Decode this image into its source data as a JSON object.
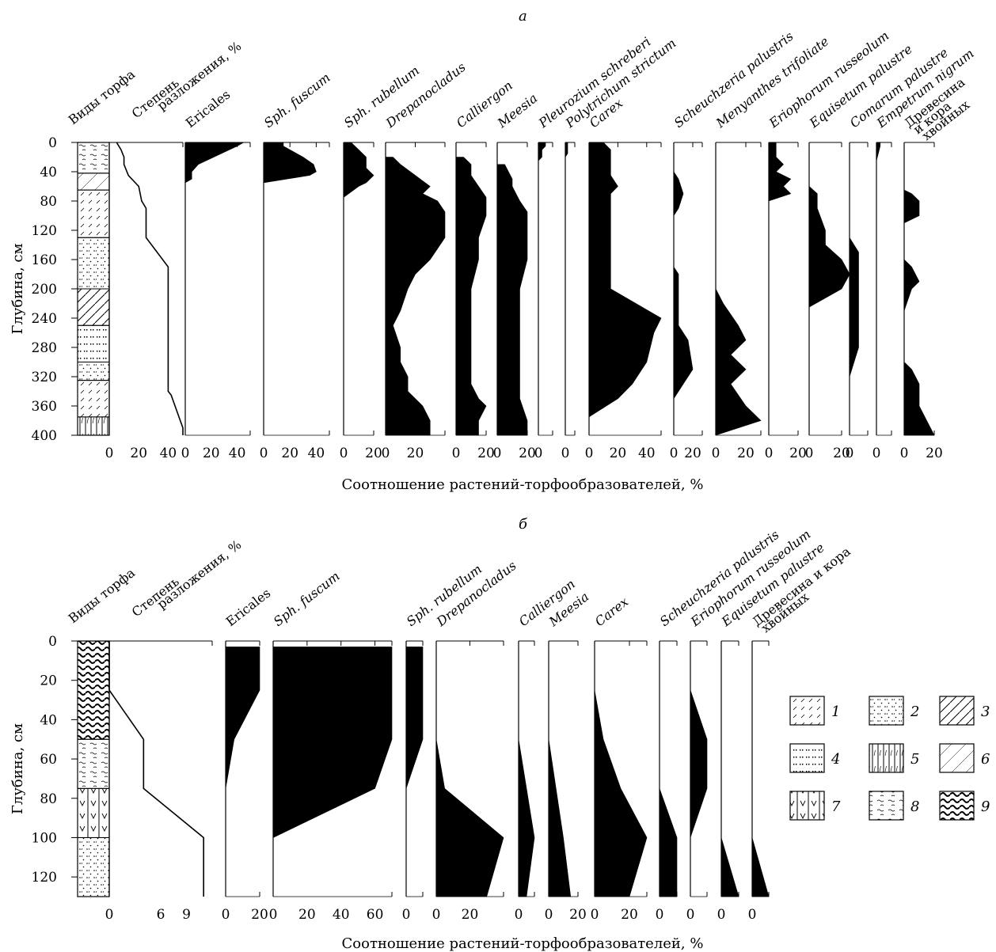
{
  "chart_data": [
    {
      "type": "area",
      "panel_label": "а",
      "xlabel": "Соотношение растений-торфообразователей, %",
      "ylabel": "Глубина, см",
      "ylim": [
        0,
        400
      ],
      "y_ticks": [
        "0",
        "40",
        "80",
        "120",
        "160",
        "200",
        "240",
        "280",
        "320",
        "360",
        "400"
      ],
      "peat_types_header": "Виды торфа",
      "peat_layers": [
        {
          "top": 0,
          "bottom": 42,
          "legend_type": 8,
          "hatch": "hook"
        },
        {
          "top": 42,
          "bottom": 65,
          "legend_type": 6,
          "hatch": "thin"
        },
        {
          "top": 65,
          "bottom": 130,
          "legend_type": 1,
          "hatch": "dashes"
        },
        {
          "top": 130,
          "bottom": 200,
          "legend_type": 2,
          "hatch": "dots"
        },
        {
          "top": 200,
          "bottom": 250,
          "legend_type": 3,
          "hatch": "diag"
        },
        {
          "top": 250,
          "bottom": 300,
          "legend_type": 4,
          "hatch": "sqdots"
        },
        {
          "top": 300,
          "bottom": 325,
          "legend_type": 2,
          "hatch": "dots"
        },
        {
          "top": 325,
          "bottom": 375,
          "legend_type": 1,
          "hatch": "dashes"
        },
        {
          "top": 375,
          "bottom": 400,
          "legend_type": 5,
          "hatch": "vert"
        }
      ],
      "decomposition": {
        "label": "Степень разложения, %",
        "label_line1": "Степень",
        "label_line2": "разложения, %",
        "xlim": [
          0,
          50
        ],
        "ticks": [
          "0",
          "20",
          "40"
        ],
        "depths": [
          0,
          10,
          20,
          30,
          45,
          60,
          80,
          90,
          130,
          170,
          200,
          230,
          340,
          345,
          390,
          400
        ],
        "values": [
          5,
          8,
          10,
          10,
          13,
          20,
          22,
          25,
          25,
          40,
          40,
          40,
          40,
          42,
          50,
          50
        ]
      },
      "series": [
        {
          "name": "Ericales",
          "italic": false,
          "xlim": [
            0,
            50
          ],
          "ticks": [
            "0",
            "20",
            "40"
          ],
          "depths": [
            0,
            5,
            30,
            40,
            50,
            55
          ],
          "values": [
            45,
            40,
            10,
            5,
            5,
            0
          ]
        },
        {
          "name": "Sph. fuscum",
          "italic": true,
          "xlim": [
            0,
            50
          ],
          "ticks": [
            "0",
            "20",
            "40"
          ],
          "depths": [
            0,
            5,
            20,
            30,
            40,
            45,
            55
          ],
          "values": [
            15,
            15,
            30,
            38,
            40,
            35,
            0
          ]
        },
        {
          "name": "Sph. rubellum",
          "italic": true,
          "xlim": [
            0,
            20
          ],
          "ticks": [
            "0",
            "20"
          ],
          "depths": [
            0,
            10,
            20,
            35,
            45,
            55,
            60,
            75
          ],
          "values": [
            5,
            10,
            15,
            15,
            20,
            15,
            10,
            0
          ]
        },
        {
          "name": "Drepanocladus",
          "italic": true,
          "xlim": [
            0,
            40
          ],
          "ticks": [
            "0",
            "20"
          ],
          "depths": [
            20,
            30,
            45,
            60,
            70,
            80,
            95,
            130,
            160,
            180,
            200,
            230,
            250,
            280,
            300,
            320,
            340,
            360,
            380,
            400
          ],
          "values": [
            5,
            10,
            20,
            30,
            25,
            35,
            40,
            40,
            30,
            20,
            15,
            10,
            5,
            10,
            10,
            15,
            15,
            25,
            30,
            30
          ]
        },
        {
          "name": "Calliergon",
          "italic": true,
          "xlim": [
            0,
            20
          ],
          "ticks": [
            "0",
            "20"
          ],
          "depths": [
            20,
            30,
            45,
            60,
            75,
            100,
            130,
            160,
            200,
            260,
            300,
            330,
            350,
            360,
            380,
            400
          ],
          "values": [
            5,
            10,
            10,
            15,
            20,
            20,
            15,
            15,
            10,
            10,
            10,
            10,
            15,
            20,
            15,
            15
          ]
        },
        {
          "name": "Meesia",
          "italic": true,
          "xlim": [
            0,
            20
          ],
          "ticks": [
            "0",
            "20"
          ],
          "depths": [
            30,
            50,
            60,
            80,
            95,
            120,
            160,
            200,
            240,
            280,
            330,
            350,
            380,
            400
          ],
          "values": [
            5,
            10,
            10,
            15,
            20,
            20,
            20,
            15,
            15,
            15,
            15,
            15,
            20,
            20
          ]
        },
        {
          "name": "Pleurozium schreberi",
          "italic": true,
          "xlim": [
            0,
            20
          ],
          "ticks": [
            "0"
          ],
          "depths": [
            0,
            5,
            10,
            20,
            25
          ],
          "values": [
            10,
            10,
            5,
            5,
            0
          ]
        },
        {
          "name": "Polytrichum strictum",
          "italic": true,
          "xlim": [
            0,
            20
          ],
          "ticks": [
            "0"
          ],
          "depths": [
            0,
            5,
            15,
            20
          ],
          "values": [
            5,
            5,
            5,
            0
          ]
        },
        {
          "name": "Carex",
          "italic": true,
          "xlim": [
            0,
            50
          ],
          "ticks": [
            "0",
            "20",
            "40"
          ],
          "depths": [
            0,
            10,
            30,
            45,
            60,
            70,
            90,
            120,
            150,
            200,
            240,
            260,
            300,
            330,
            350,
            375
          ],
          "values": [
            10,
            15,
            15,
            15,
            20,
            15,
            15,
            15,
            15,
            15,
            50,
            45,
            40,
            30,
            20,
            0
          ]
        },
        {
          "name": "Scheuchzeria palustris",
          "italic": true,
          "xlim": [
            0,
            30
          ],
          "ticks": [
            "0",
            "20"
          ],
          "depths": [
            40,
            50,
            70,
            90,
            100,
            170,
            180,
            250,
            270,
            310,
            330,
            350
          ],
          "values": [
            0,
            5,
            10,
            5,
            0,
            0,
            5,
            5,
            15,
            20,
            10,
            0
          ]
        },
        {
          "name": "Menyanthes trifoliate",
          "italic": true,
          "xlim": [
            0,
            30
          ],
          "ticks": [
            "0",
            "20"
          ],
          "depths": [
            200,
            220,
            250,
            270,
            290,
            310,
            330,
            360,
            380,
            400
          ],
          "values": [
            0,
            5,
            15,
            20,
            10,
            20,
            10,
            20,
            30,
            0
          ]
        },
        {
          "name": "Eriophorum russeolum",
          "italic": true,
          "xlim": [
            0,
            20
          ],
          "ticks": [
            "0",
            "20"
          ],
          "depths": [
            0,
            20,
            30,
            40,
            50,
            60,
            70,
            80
          ],
          "values": [
            5,
            5,
            10,
            5,
            15,
            10,
            15,
            0
          ]
        },
        {
          "name": "Equisetum palustre",
          "italic": true,
          "xlim": [
            0,
            20
          ],
          "ticks": [
            "0",
            "20"
          ],
          "depths": [
            60,
            70,
            90,
            120,
            140,
            160,
            180,
            200,
            225
          ],
          "values": [
            0,
            5,
            5,
            10,
            10,
            20,
            25,
            20,
            0
          ]
        },
        {
          "name": "Comarum palustre",
          "italic": true,
          "xlim": [
            0,
            20
          ],
          "ticks": [
            "0"
          ],
          "depths": [
            130,
            150,
            200,
            240,
            280,
            320
          ],
          "values": [
            0,
            10,
            10,
            10,
            10,
            0
          ]
        },
        {
          "name": "Empetrum nigrum",
          "italic": true,
          "xlim": [
            0,
            20
          ],
          "ticks": [
            "0"
          ],
          "depths": [
            0,
            5,
            25
          ],
          "values": [
            5,
            5,
            0
          ]
        },
        {
          "name": "Древесина и кора хвойных",
          "italic": false,
          "xlim": [
            0,
            20
          ],
          "ticks": [
            "0",
            "20"
          ],
          "depths": [
            65,
            70,
            80,
            100,
            110,
            160,
            170,
            190,
            200,
            230,
            300,
            310,
            330,
            360,
            380,
            400
          ],
          "values": [
            0,
            5,
            10,
            10,
            0,
            0,
            5,
            10,
            5,
            0,
            0,
            5,
            10,
            10,
            15,
            20
          ]
        }
      ]
    },
    {
      "type": "area",
      "panel_label": "б",
      "xlabel": "Соотношение растений-торфообразователей, %",
      "ylabel": "Глубина, см",
      "ylim": [
        0,
        130
      ],
      "y_ticks": [
        "0",
        "20",
        "40",
        "60",
        "80",
        "100",
        "120"
      ],
      "peat_types_header": "Виды торфа",
      "peat_layers": [
        {
          "top": 0,
          "bottom": 50,
          "legend_type": 9,
          "hatch": "wave"
        },
        {
          "top": 50,
          "bottom": 75,
          "legend_type": 8,
          "hatch": "hook"
        },
        {
          "top": 75,
          "bottom": 100,
          "legend_type": 7,
          "hatch": "vcheck"
        },
        {
          "top": 100,
          "bottom": 130,
          "legend_type": 2,
          "hatch": "dots"
        }
      ],
      "decomposition": {
        "label": "Степень разложения, %",
        "label_line1": "Степень",
        "label_line2": "разложения, %",
        "xlim": [
          0,
          12
        ],
        "ticks": [
          "0",
          "6",
          "9"
        ],
        "depths": [
          0,
          25,
          50,
          75,
          100,
          130
        ],
        "values": [
          0,
          0,
          4,
          4,
          11,
          11
        ]
      },
      "series": [
        {
          "name": "Ericales",
          "italic": false,
          "xlim": [
            0,
            20
          ],
          "ticks": [
            "0",
            "20"
          ],
          "depths": [
            3,
            25,
            50,
            75
          ],
          "values": [
            20,
            20,
            5,
            0
          ]
        },
        {
          "name": "Sph. fuscum",
          "italic": true,
          "xlim": [
            0,
            70
          ],
          "ticks": [
            "0",
            "20",
            "40",
            "60"
          ],
          "depths": [
            3,
            25,
            50,
            75,
            100
          ],
          "values": [
            70,
            70,
            70,
            60,
            0
          ]
        },
        {
          "name": "Sph. rubellum",
          "italic": true,
          "xlim": [
            0,
            10
          ],
          "ticks": [
            "0"
          ],
          "depths": [
            3,
            25,
            50,
            75
          ],
          "values": [
            10,
            10,
            10,
            0
          ]
        },
        {
          "name": "Drepanocladus",
          "italic": true,
          "xlim": [
            0,
            40
          ],
          "ticks": [
            "0",
            "20"
          ],
          "depths": [
            50,
            75,
            100,
            130
          ],
          "values": [
            0,
            5,
            40,
            30
          ]
        },
        {
          "name": "Calliergon",
          "italic": true,
          "xlim": [
            0,
            10
          ],
          "ticks": [
            "0"
          ],
          "depths": [
            50,
            75,
            100,
            130
          ],
          "values": [
            0,
            5,
            10,
            5
          ]
        },
        {
          "name": "Meesia",
          "italic": true,
          "xlim": [
            0,
            20
          ],
          "ticks": [
            "0",
            "20"
          ],
          "depths": [
            50,
            75,
            100,
            130
          ],
          "values": [
            0,
            5,
            10,
            15
          ]
        },
        {
          "name": "Carex",
          "italic": true,
          "xlim": [
            0,
            30
          ],
          "ticks": [
            "0",
            "20"
          ],
          "depths": [
            25,
            50,
            75,
            100,
            130
          ],
          "values": [
            0,
            5,
            15,
            30,
            20
          ]
        },
        {
          "name": "Scheuchzeria palustris",
          "italic": true,
          "xlim": [
            0,
            10
          ],
          "ticks": [
            "0"
          ],
          "depths": [
            75,
            100,
            130
          ],
          "values": [
            0,
            10,
            10
          ]
        },
        {
          "name": "Eriophorum russeolum",
          "italic": true,
          "xlim": [
            0,
            10
          ],
          "ticks": [
            "0"
          ],
          "depths": [
            25,
            50,
            75,
            100
          ],
          "values": [
            0,
            10,
            10,
            0
          ]
        },
        {
          "name": "Equisetum palustre",
          "italic": true,
          "xlim": [
            0,
            10
          ],
          "ticks": [
            "0"
          ],
          "depths": [
            100,
            130
          ],
          "values": [
            0,
            10
          ]
        },
        {
          "name": "Древесина и кора хвойных",
          "italic": false,
          "xlim": [
            0,
            10
          ],
          "ticks": [
            "0"
          ],
          "depths": [
            100,
            130
          ],
          "values": [
            0,
            10
          ]
        }
      ]
    }
  ],
  "legend": [
    {
      "num": "1",
      "hatch": "dashes"
    },
    {
      "num": "2",
      "hatch": "dots"
    },
    {
      "num": "3",
      "hatch": "diag"
    },
    {
      "num": "4",
      "hatch": "sqdots"
    },
    {
      "num": "5",
      "hatch": "vert"
    },
    {
      "num": "6",
      "hatch": "thin"
    },
    {
      "num": "7",
      "hatch": "vcheck"
    },
    {
      "num": "8",
      "hatch": "hook"
    },
    {
      "num": "9",
      "hatch": "wave"
    }
  ]
}
